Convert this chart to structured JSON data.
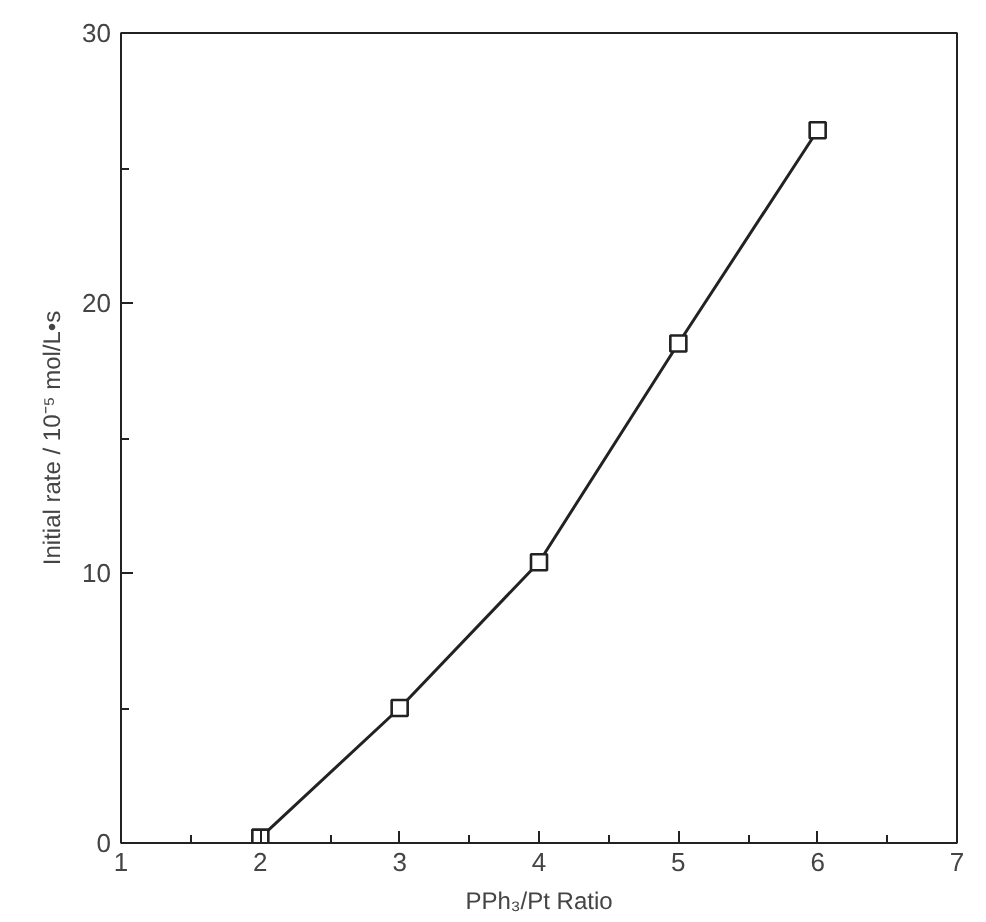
{
  "chart_data": {
    "type": "line",
    "xlabel": "PPh₃/Pt Ratio",
    "ylabel": "Initial rate / 10⁻⁵ mol/L•s",
    "x": [
      2,
      3,
      4,
      5,
      6
    ],
    "series": [
      {
        "color": "#222222",
        "values": [
          0.2,
          5.0,
          10.4,
          18.5,
          26.4
        ]
      }
    ],
    "marker": "square",
    "line_style": "solid",
    "xlim": [
      1,
      7
    ],
    "ylim": [
      0,
      30
    ],
    "xticks": [
      1,
      {
        "value": 1.5,
        "label": null
      },
      2,
      {
        "value": 2.5,
        "label": null
      },
      3,
      {
        "value": 3.5,
        "label": null
      },
      4,
      {
        "value": 4.5,
        "label": null
      },
      5,
      {
        "value": 5.5,
        "label": null
      },
      6,
      {
        "value": 6.5,
        "label": null
      },
      7
    ],
    "yticks": [
      0,
      {
        "value": 5,
        "label": null
      },
      10,
      {
        "value": 15,
        "label": null
      },
      20,
      {
        "value": 25,
        "label": null
      },
      30
    ]
  }
}
